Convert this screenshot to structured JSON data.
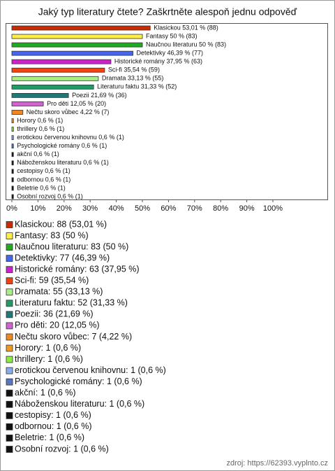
{
  "chart_data": {
    "type": "bar",
    "orientation": "horizontal",
    "title": "Jaký typ literatury čtete? Zaškrtněte alespoň jednu odpověď",
    "values": [
      53.01,
      50,
      50,
      46.39,
      37.95,
      35.54,
      33.13,
      31.33,
      21.69,
      12.05,
      4.22,
      0.6,
      0.6,
      0.6,
      0.6,
      0.6,
      0.6,
      0.6,
      0.6,
      0.6,
      0.6
    ],
    "value_labels": [
      "Klasickou 53,01 % (88)",
      "Fantasy 50 % (83)",
      "Naučnou literaturu 50 % (83)",
      "Detektivky 46,39 % (77)",
      "Historické romány 37,95 % (63)",
      "Sci-fi 35,54 % (59)",
      "Dramata 33,13 % (55)",
      "Literaturu faktu 31,33 % (52)",
      "Poezii 21,69 % (36)",
      "Pro děti 12,05 % (20)",
      "Nečtu skoro vůbec 4,22 % (7)",
      "Horory 0,6 % (1)",
      "thrillery 0,6 % (1)",
      "erotickou červenou knihovnu 0,6 % (1)",
      "Psychologické romány 0,6 % (1)",
      "akční 0,6 % (1)",
      "Náboženskou literaturu 0,6 % (1)",
      "cestopisy 0,6 % (1)",
      "odbornou 0,6 % (1)",
      "Beletrie 0,6 % (1)",
      "Osobní rozvoj 0,6 % (1)"
    ],
    "legend_labels": [
      "Klasickou: 88 (53,01 %)",
      "Fantasy: 83 (50 %)",
      "Naučnou literaturu: 83 (50 %)",
      "Detektivky: 77 (46,39 %)",
      "Historické romány: 63 (37,95 %)",
      "Sci-fi: 59 (35,54 %)",
      "Dramata: 55 (33,13 %)",
      "Literaturu faktu: 52 (31,33 %)",
      "Poezii: 36 (21,69 %)",
      "Pro děti: 20 (12,05 %)",
      "Nečtu skoro vůbec: 7 (4,22 %)",
      "Horory: 1 (0,6 %)",
      "thrillery: 1 (0,6 %)",
      "erotickou červenou knihovnu: 1 (0,6 %)",
      "Psychologické romány: 1 (0,6 %)",
      "akční: 1 (0,6 %)",
      "Náboženskou literaturu: 1 (0,6 %)",
      "cestopisy: 1 (0,6 %)",
      "odbornou: 1 (0,6 %)",
      "Beletrie: 1 (0,6 %)",
      "Osobní rozvoj: 1 (0,6 %)"
    ],
    "colors": [
      "#cc2a00",
      "#ffee44",
      "#22aa22",
      "#4466ee",
      "#cc22cc",
      "#ee4411",
      "#aaee88",
      "#229966",
      "#227777",
      "#cc66cc",
      "#ee8822",
      "#ee9922",
      "#88ee44",
      "#88aaee",
      "#5577bb",
      "#111111",
      "#111111",
      "#111111",
      "#111111",
      "#111111",
      "#111111"
    ],
    "xlim": [
      0,
      100
    ],
    "xticks": [
      {
        "value": 0,
        "label": "0%"
      },
      {
        "value": 10,
        "label": "10%"
      },
      {
        "value": 20,
        "label": "20%"
      },
      {
        "value": 30,
        "label": "30%"
      },
      {
        "value": 40,
        "label": "40%"
      },
      {
        "value": 50,
        "label": "50%"
      },
      {
        "value": 60,
        "label": "60%"
      },
      {
        "value": 70,
        "label": "70%"
      },
      {
        "value": 80,
        "label": "80%"
      },
      {
        "value": 90,
        "label": "90%"
      },
      {
        "value": 100,
        "label": "100%"
      }
    ],
    "grid": false,
    "source": "zdroj: https://62393.vyplnto.cz"
  }
}
